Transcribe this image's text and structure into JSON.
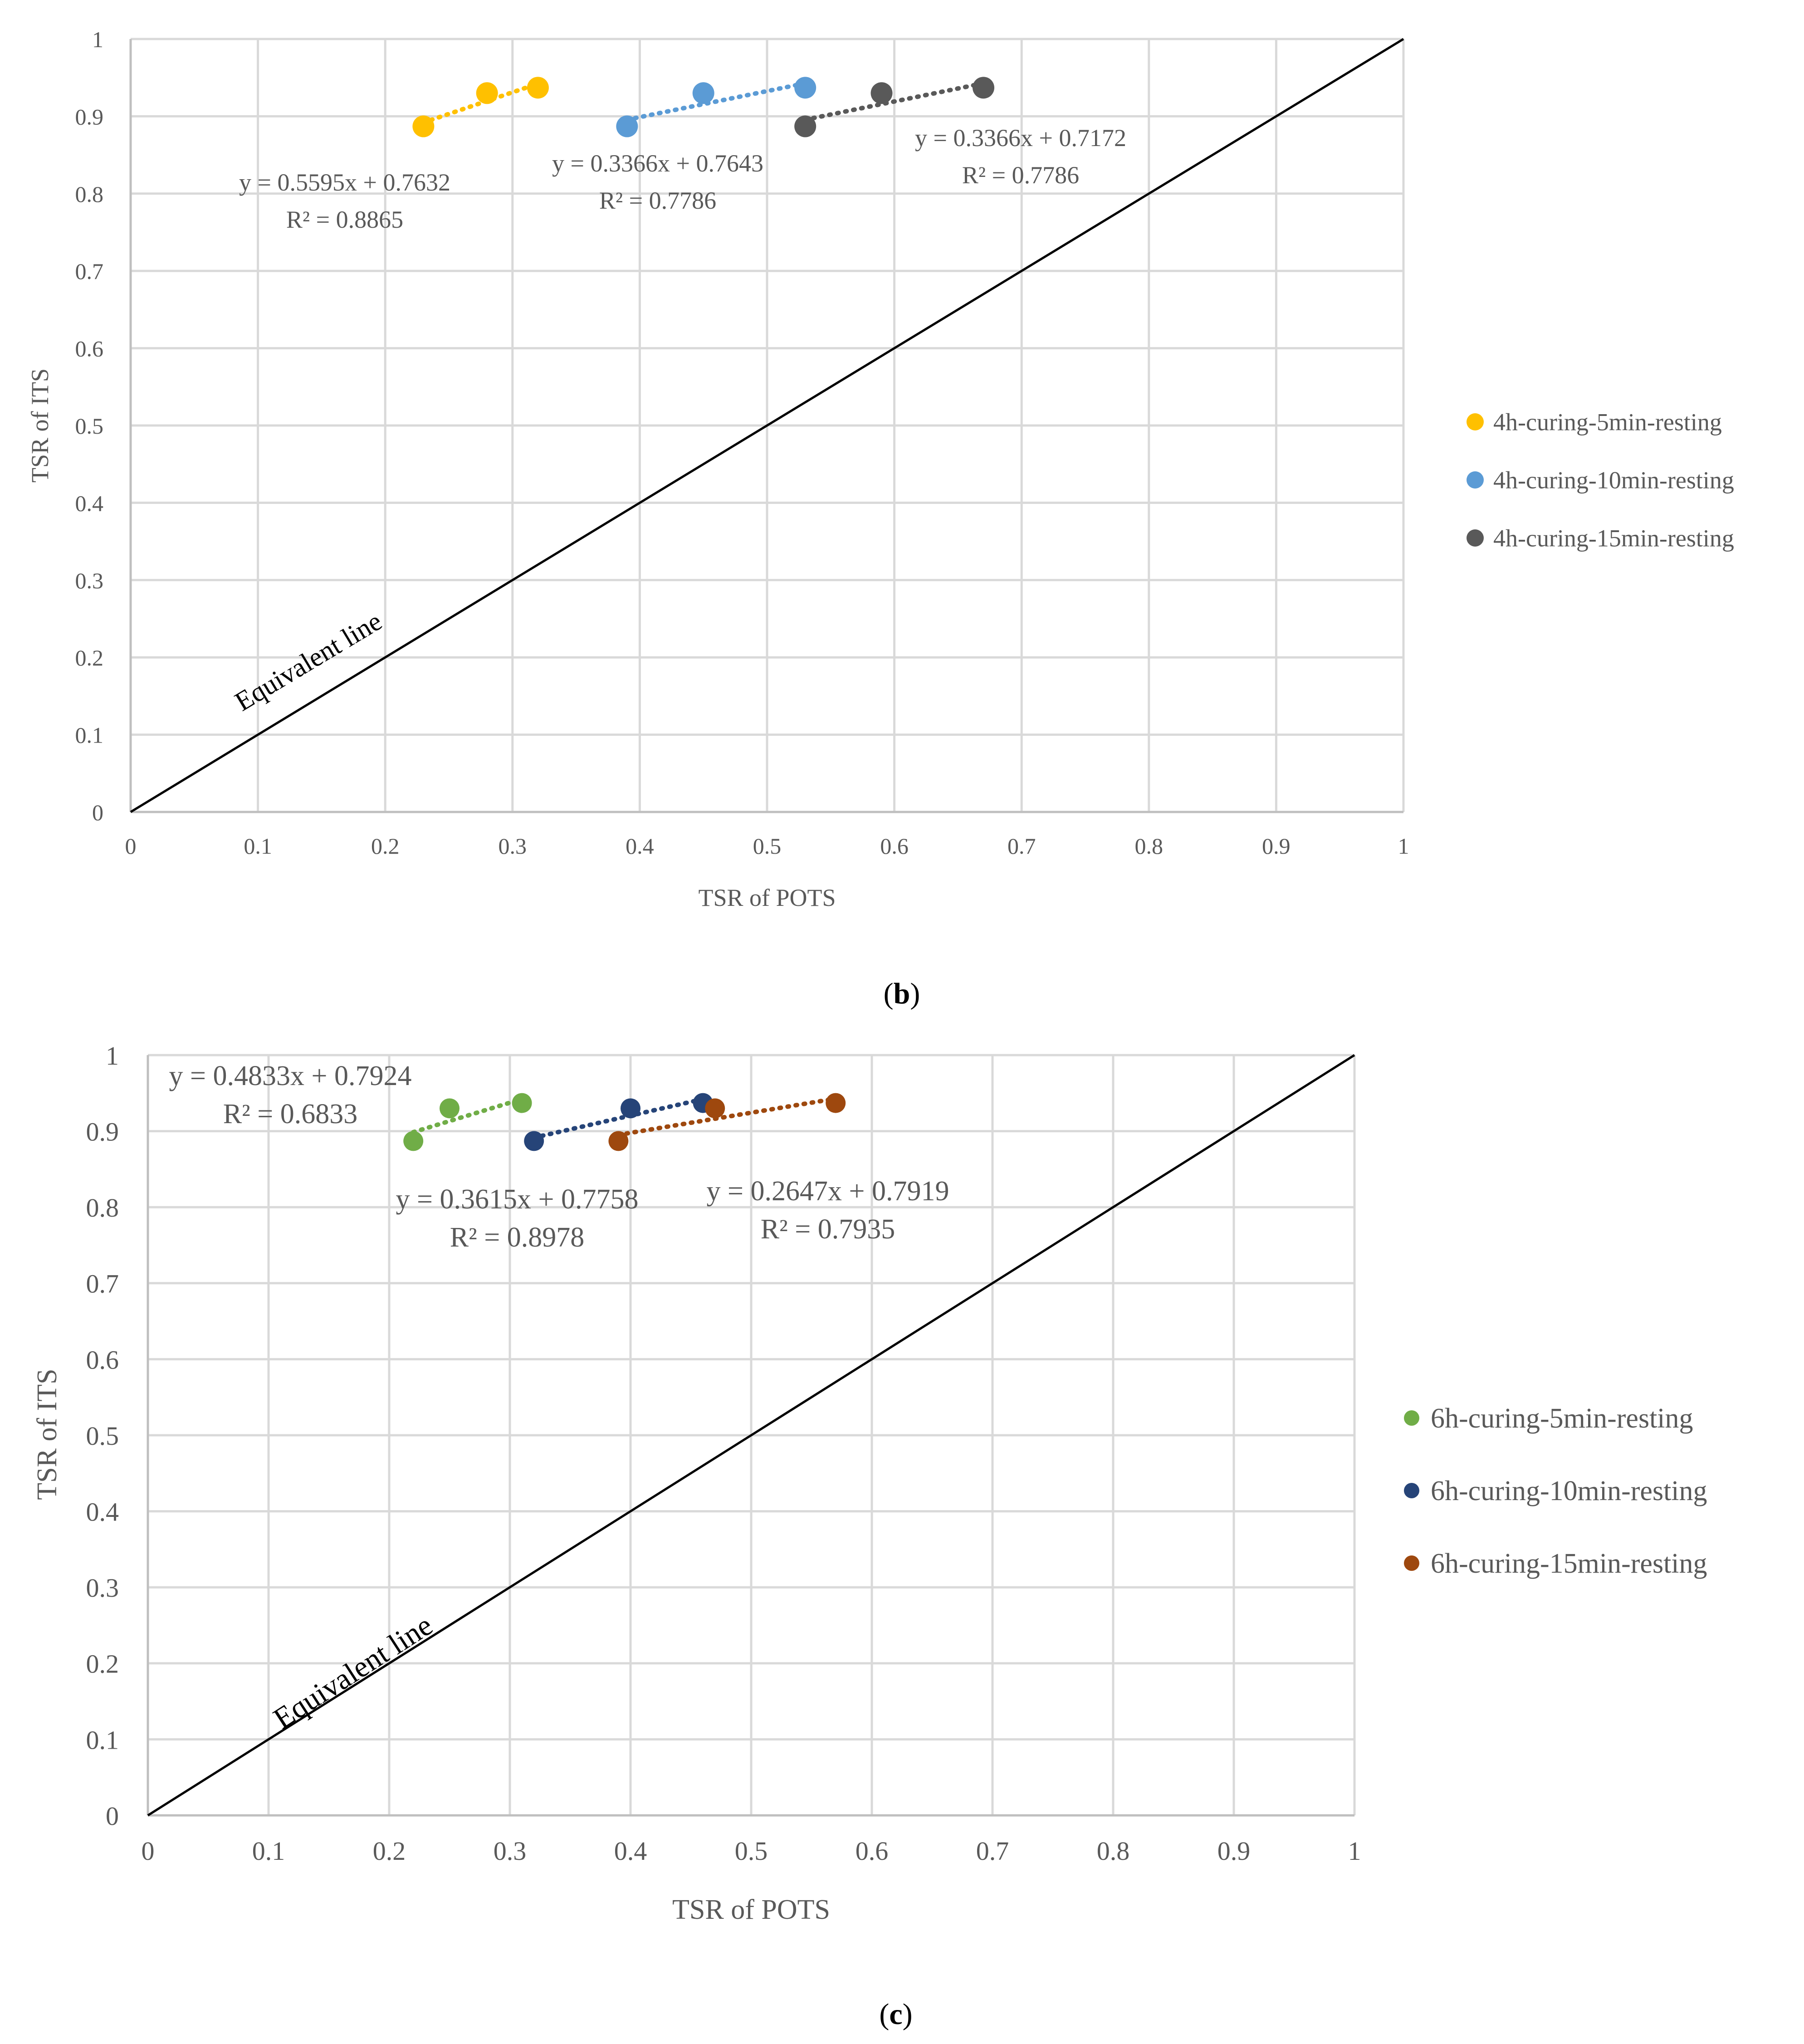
{
  "colors": {
    "grid": "#d9d9d9",
    "axis": "#bfbfbf",
    "equivalent_line": "#000000",
    "yellow": "#ffc000",
    "light_blue": "#5b9bd5",
    "gray": "#595959",
    "green": "#70ad47",
    "navy": "#264478",
    "brown": "#9e480e"
  },
  "chart_data": [
    {
      "type": "scatter",
      "caption_letter": "b",
      "caption_open": "(",
      "caption_close": ")",
      "xlabel": "TSR of POTS",
      "ylabel": "TSR of ITS",
      "xlim": [
        0,
        1
      ],
      "ylim": [
        0,
        1
      ],
      "xticks": [
        "0",
        "0.1",
        "0.2",
        "0.3",
        "0.4",
        "0.5",
        "0.6",
        "0.7",
        "0.8",
        "0.9",
        "1"
      ],
      "yticks": [
        "0",
        "0.1",
        "0.2",
        "0.3",
        "0.4",
        "0.5",
        "0.6",
        "0.7",
        "0.8",
        "0.9",
        "1"
      ],
      "grid": true,
      "legend_position": "right",
      "reference_line": {
        "label": "Equivalent line",
        "from": [
          0,
          0
        ],
        "to": [
          1,
          1
        ]
      },
      "series": [
        {
          "name": "4h-curing-5min-resting",
          "color": "#ffc000",
          "x": [
            0.23,
            0.28,
            0.32
          ],
          "y": [
            0.887,
            0.93,
            0.937
          ],
          "trendline": {
            "slope": 0.5595,
            "intercept": 0.7632
          },
          "equation": "y = 0.5595x + 0.7632",
          "r_squared": "R² = 0.8865"
        },
        {
          "name": "4h-curing-10min-resting",
          "color": "#5b9bd5",
          "x": [
            0.39,
            0.45,
            0.53
          ],
          "y": [
            0.887,
            0.93,
            0.937
          ],
          "trendline": {
            "slope": 0.3366,
            "intercept": 0.7643
          },
          "equation": "y = 0.3366x + 0.7643",
          "r_squared": "R² = 0.7786"
        },
        {
          "name": "4h-curing-15min-resting",
          "color": "#595959",
          "x": [
            0.53,
            0.59,
            0.67
          ],
          "y": [
            0.887,
            0.93,
            0.937
          ],
          "trendline": {
            "slope": 0.3366,
            "intercept": 0.7172
          },
          "equation": "y = 0.3366x + 0.7172",
          "r_squared": "R² = 0.7786"
        }
      ]
    },
    {
      "type": "scatter",
      "caption_letter": "c",
      "caption_open": "(",
      "caption_close": ")",
      "xlabel": "TSR of POTS",
      "ylabel": "TSR of ITS",
      "xlim": [
        0,
        1
      ],
      "ylim": [
        0,
        1
      ],
      "xticks": [
        "0",
        "0.1",
        "0.2",
        "0.3",
        "0.4",
        "0.5",
        "0.6",
        "0.7",
        "0.8",
        "0.9",
        "1"
      ],
      "yticks": [
        "0",
        "0.1",
        "0.2",
        "0.3",
        "0.4",
        "0.5",
        "0.6",
        "0.7",
        "0.8",
        "0.9",
        "1"
      ],
      "grid": true,
      "legend_position": "right",
      "reference_line": {
        "label": "Equivalent line",
        "from": [
          0,
          0
        ],
        "to": [
          1,
          1
        ]
      },
      "series": [
        {
          "name": "6h-curing-5min-resting",
          "color": "#70ad47",
          "x": [
            0.22,
            0.25,
            0.31
          ],
          "y": [
            0.887,
            0.93,
            0.937
          ],
          "trendline": {
            "slope": 0.4833,
            "intercept": 0.7924
          },
          "equation": "y = 0.4833x + 0.7924",
          "r_squared": "R² = 0.6833"
        },
        {
          "name": "6h-curing-10min-resting",
          "color": "#264478",
          "x": [
            0.32,
            0.4,
            0.46
          ],
          "y": [
            0.887,
            0.93,
            0.937
          ],
          "trendline": {
            "slope": 0.3615,
            "intercept": 0.7758
          },
          "equation": "y = 0.3615x + 0.7758",
          "r_squared": "R² = 0.8978"
        },
        {
          "name": "6h-curing-15min-resting",
          "color": "#9e480e",
          "x": [
            0.39,
            0.47,
            0.57
          ],
          "y": [
            0.887,
            0.93,
            0.937
          ],
          "trendline": {
            "slope": 0.2647,
            "intercept": 0.7919
          },
          "equation": "y = 0.2647x + 0.7919",
          "r_squared": "R² = 0.7935"
        }
      ]
    }
  ]
}
